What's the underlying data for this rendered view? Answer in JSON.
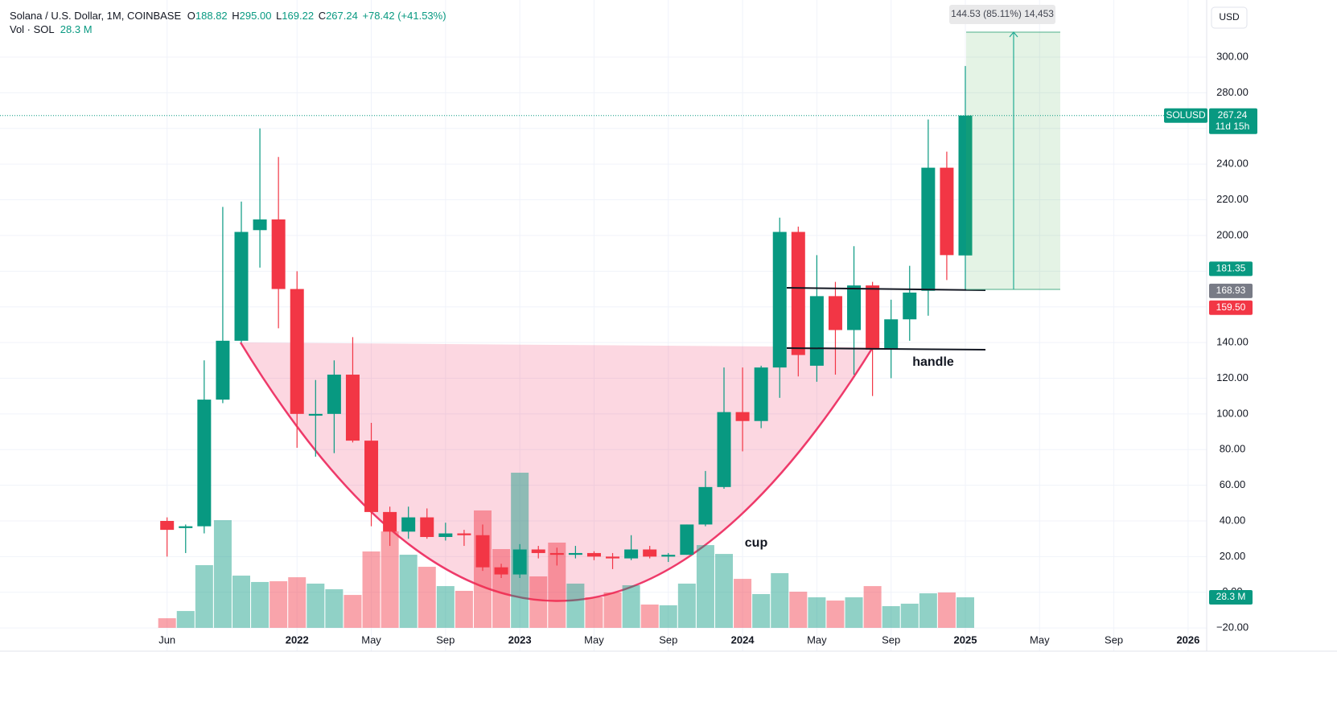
{
  "chart_data": {
    "type": "candlestick",
    "legend": {
      "title": "Solana / U.S. Dollar, 1M, COINBASE",
      "fields": [
        {
          "key": "O",
          "value": "188.82"
        },
        {
          "key": "H",
          "value": "295.00"
        },
        {
          "key": "L",
          "value": "169.22"
        },
        {
          "key": "C",
          "value": "267.24"
        }
      ],
      "change": "+78.42 (+41.53%)",
      "volume_title": "Vol · SOL",
      "volume_value": "28.3 M"
    },
    "currency": "USD",
    "x": [
      0,
      1,
      2,
      3,
      4,
      5,
      6,
      7,
      8,
      9,
      10,
      11,
      12,
      13,
      14,
      15,
      16,
      17,
      18,
      19,
      20,
      21,
      22,
      23,
      24,
      25,
      26,
      27,
      28,
      29,
      30,
      31,
      32,
      33,
      34,
      35,
      36,
      37,
      38,
      39,
      40,
      41,
      42,
      43
    ],
    "open": [
      40,
      36,
      37,
      108,
      141,
      203,
      209,
      170,
      99,
      100,
      122,
      85,
      45,
      34,
      42,
      31,
      33,
      32,
      14,
      10,
      24,
      22,
      21,
      22,
      20,
      19,
      24,
      20,
      21,
      38,
      59,
      101,
      96,
      126,
      202,
      127,
      166,
      147,
      172,
      136,
      153,
      169,
      238,
      188.82
    ],
    "high": [
      42,
      38,
      130,
      216,
      219,
      260,
      244,
      180,
      119,
      130,
      143,
      95,
      48,
      48,
      47,
      39,
      35,
      38,
      16,
      27,
      26,
      25,
      26,
      23,
      22,
      32,
      26,
      22,
      38,
      68,
      126,
      126,
      127,
      210,
      205,
      189,
      174,
      194,
      174,
      164,
      183,
      265,
      247,
      295
    ],
    "low": [
      20,
      22,
      33,
      106,
      140,
      182,
      148,
      81,
      76,
      78,
      84,
      37,
      26,
      30,
      30,
      29,
      26,
      12,
      8,
      8,
      19,
      15,
      19,
      18,
      13,
      18,
      19,
      17,
      21,
      37,
      58,
      79,
      92,
      109,
      121,
      118,
      122,
      122,
      110,
      120,
      141,
      155,
      175,
      169.22
    ],
    "close": [
      35,
      37,
      108,
      141,
      202,
      209,
      170,
      100,
      100,
      122,
      85,
      45,
      34,
      42,
      31,
      33,
      32,
      14,
      10,
      24,
      22,
      21,
      22,
      20,
      19,
      24,
      20,
      21,
      38,
      59,
      101,
      96,
      126,
      202,
      133,
      166,
      147,
      172,
      136,
      153,
      168,
      238,
      189,
      267.24
    ],
    "volume": [
      8.9,
      15.6,
      58.1,
      99.8,
      48.4,
      42.5,
      43.2,
      46.9,
      41.0,
      35.8,
      30.5,
      70.8,
      89.4,
      67.8,
      56.6,
      38.7,
      34.3,
      108.8,
      73.0,
      143.8,
      47.7,
      79.0,
      41.0,
      28.3,
      32.8,
      39.5,
      21.6,
      20.9,
      41.0,
      76.7,
      68.5,
      45.4,
      31.3,
      50.7,
      33.5,
      28.3,
      25.3,
      28.3,
      38.7,
      20.1,
      22.4,
      32.0,
      32.8,
      28.3
    ],
    "up_color": "#089981",
    "down_color": "#f23645",
    "xlim": [
      -9,
      56
    ],
    "xticks": [
      {
        "value": 0,
        "label": "Jun"
      },
      {
        "value": 7,
        "label": "2022"
      },
      {
        "value": 11,
        "label": "May"
      },
      {
        "value": 15,
        "label": "Sep"
      },
      {
        "value": 19,
        "label": "2023"
      },
      {
        "value": 23,
        "label": "May"
      },
      {
        "value": 27,
        "label": "Sep"
      },
      {
        "value": 31,
        "label": "2024"
      },
      {
        "value": 35,
        "label": "May"
      },
      {
        "value": 39,
        "label": "Sep"
      },
      {
        "value": 43,
        "label": "2025"
      },
      {
        "value": 47,
        "label": "May"
      },
      {
        "value": 51,
        "label": "Sep"
      },
      {
        "value": 55,
        "label": "2026"
      }
    ],
    "ylim": [
      -33,
      332
    ],
    "yticks": [
      {
        "value": -20,
        "label": "−20.00"
      },
      {
        "value": 0,
        "label": "0.00"
      },
      {
        "value": 20,
        "label": "20.00"
      },
      {
        "value": 40,
        "label": "40.00"
      },
      {
        "value": 60,
        "label": "60.00"
      },
      {
        "value": 80,
        "label": "80.00"
      },
      {
        "value": 100,
        "label": "100.00"
      },
      {
        "value": 120,
        "label": "120.00"
      },
      {
        "value": 140,
        "label": "140.00"
      },
      {
        "value": 160,
        "label": "160.00"
      },
      {
        "value": 180,
        "label": "180.00"
      },
      {
        "value": 200,
        "label": "200.00"
      },
      {
        "value": 220,
        "label": "220.00"
      },
      {
        "value": 240,
        "label": "240.00"
      },
      {
        "value": 260,
        "label": "260.00"
      },
      {
        "value": 280,
        "label": "280.00"
      },
      {
        "value": 300,
        "label": "300.00"
      }
    ],
    "grid": true,
    "current": {
      "symbol": "SOLUSD",
      "value": 267.24,
      "countdown": "11d 15h"
    },
    "price_labels": [
      {
        "value": 181.35,
        "label": "181.35",
        "color": "#089981"
      },
      {
        "value": 168.93,
        "label": "168.93",
        "color": "#787b86"
      },
      {
        "value": 159.5,
        "label": "159.50",
        "color": "#f23645"
      }
    ],
    "measure": {
      "label": "144.53 (85.11%) 14,453"
    },
    "annotations": [
      "cup",
      "handle"
    ]
  }
}
